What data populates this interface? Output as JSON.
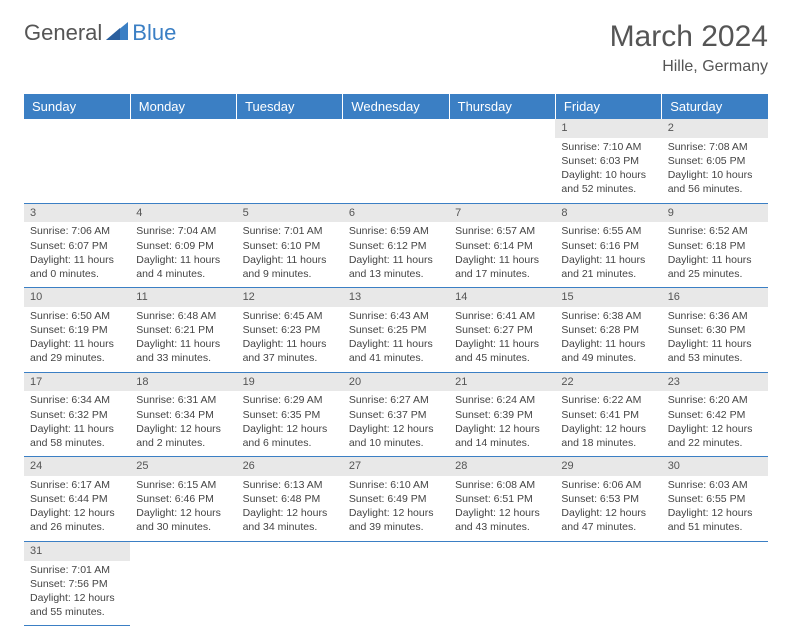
{
  "logo": {
    "part1": "General",
    "part2": "Blue"
  },
  "title": "March 2024",
  "location": "Hille, Germany",
  "colors": {
    "header_bg": "#3b7fc4",
    "header_text": "#ffffff",
    "daynum_bg": "#e8e8e8",
    "border": "#3b7fc4",
    "text": "#444444",
    "page_bg": "#ffffff"
  },
  "weekdays": [
    "Sunday",
    "Monday",
    "Tuesday",
    "Wednesday",
    "Thursday",
    "Friday",
    "Saturday"
  ],
  "weeks": [
    [
      null,
      null,
      null,
      null,
      null,
      {
        "n": "1",
        "sr": "Sunrise: 7:10 AM",
        "ss": "Sunset: 6:03 PM",
        "dl1": "Daylight: 10 hours",
        "dl2": "and 52 minutes."
      },
      {
        "n": "2",
        "sr": "Sunrise: 7:08 AM",
        "ss": "Sunset: 6:05 PM",
        "dl1": "Daylight: 10 hours",
        "dl2": "and 56 minutes."
      }
    ],
    [
      {
        "n": "3",
        "sr": "Sunrise: 7:06 AM",
        "ss": "Sunset: 6:07 PM",
        "dl1": "Daylight: 11 hours",
        "dl2": "and 0 minutes."
      },
      {
        "n": "4",
        "sr": "Sunrise: 7:04 AM",
        "ss": "Sunset: 6:09 PM",
        "dl1": "Daylight: 11 hours",
        "dl2": "and 4 minutes."
      },
      {
        "n": "5",
        "sr": "Sunrise: 7:01 AM",
        "ss": "Sunset: 6:10 PM",
        "dl1": "Daylight: 11 hours",
        "dl2": "and 9 minutes."
      },
      {
        "n": "6",
        "sr": "Sunrise: 6:59 AM",
        "ss": "Sunset: 6:12 PM",
        "dl1": "Daylight: 11 hours",
        "dl2": "and 13 minutes."
      },
      {
        "n": "7",
        "sr": "Sunrise: 6:57 AM",
        "ss": "Sunset: 6:14 PM",
        "dl1": "Daylight: 11 hours",
        "dl2": "and 17 minutes."
      },
      {
        "n": "8",
        "sr": "Sunrise: 6:55 AM",
        "ss": "Sunset: 6:16 PM",
        "dl1": "Daylight: 11 hours",
        "dl2": "and 21 minutes."
      },
      {
        "n": "9",
        "sr": "Sunrise: 6:52 AM",
        "ss": "Sunset: 6:18 PM",
        "dl1": "Daylight: 11 hours",
        "dl2": "and 25 minutes."
      }
    ],
    [
      {
        "n": "10",
        "sr": "Sunrise: 6:50 AM",
        "ss": "Sunset: 6:19 PM",
        "dl1": "Daylight: 11 hours",
        "dl2": "and 29 minutes."
      },
      {
        "n": "11",
        "sr": "Sunrise: 6:48 AM",
        "ss": "Sunset: 6:21 PM",
        "dl1": "Daylight: 11 hours",
        "dl2": "and 33 minutes."
      },
      {
        "n": "12",
        "sr": "Sunrise: 6:45 AM",
        "ss": "Sunset: 6:23 PM",
        "dl1": "Daylight: 11 hours",
        "dl2": "and 37 minutes."
      },
      {
        "n": "13",
        "sr": "Sunrise: 6:43 AM",
        "ss": "Sunset: 6:25 PM",
        "dl1": "Daylight: 11 hours",
        "dl2": "and 41 minutes."
      },
      {
        "n": "14",
        "sr": "Sunrise: 6:41 AM",
        "ss": "Sunset: 6:27 PM",
        "dl1": "Daylight: 11 hours",
        "dl2": "and 45 minutes."
      },
      {
        "n": "15",
        "sr": "Sunrise: 6:38 AM",
        "ss": "Sunset: 6:28 PM",
        "dl1": "Daylight: 11 hours",
        "dl2": "and 49 minutes."
      },
      {
        "n": "16",
        "sr": "Sunrise: 6:36 AM",
        "ss": "Sunset: 6:30 PM",
        "dl1": "Daylight: 11 hours",
        "dl2": "and 53 minutes."
      }
    ],
    [
      {
        "n": "17",
        "sr": "Sunrise: 6:34 AM",
        "ss": "Sunset: 6:32 PM",
        "dl1": "Daylight: 11 hours",
        "dl2": "and 58 minutes."
      },
      {
        "n": "18",
        "sr": "Sunrise: 6:31 AM",
        "ss": "Sunset: 6:34 PM",
        "dl1": "Daylight: 12 hours",
        "dl2": "and 2 minutes."
      },
      {
        "n": "19",
        "sr": "Sunrise: 6:29 AM",
        "ss": "Sunset: 6:35 PM",
        "dl1": "Daylight: 12 hours",
        "dl2": "and 6 minutes."
      },
      {
        "n": "20",
        "sr": "Sunrise: 6:27 AM",
        "ss": "Sunset: 6:37 PM",
        "dl1": "Daylight: 12 hours",
        "dl2": "and 10 minutes."
      },
      {
        "n": "21",
        "sr": "Sunrise: 6:24 AM",
        "ss": "Sunset: 6:39 PM",
        "dl1": "Daylight: 12 hours",
        "dl2": "and 14 minutes."
      },
      {
        "n": "22",
        "sr": "Sunrise: 6:22 AM",
        "ss": "Sunset: 6:41 PM",
        "dl1": "Daylight: 12 hours",
        "dl2": "and 18 minutes."
      },
      {
        "n": "23",
        "sr": "Sunrise: 6:20 AM",
        "ss": "Sunset: 6:42 PM",
        "dl1": "Daylight: 12 hours",
        "dl2": "and 22 minutes."
      }
    ],
    [
      {
        "n": "24",
        "sr": "Sunrise: 6:17 AM",
        "ss": "Sunset: 6:44 PM",
        "dl1": "Daylight: 12 hours",
        "dl2": "and 26 minutes."
      },
      {
        "n": "25",
        "sr": "Sunrise: 6:15 AM",
        "ss": "Sunset: 6:46 PM",
        "dl1": "Daylight: 12 hours",
        "dl2": "and 30 minutes."
      },
      {
        "n": "26",
        "sr": "Sunrise: 6:13 AM",
        "ss": "Sunset: 6:48 PM",
        "dl1": "Daylight: 12 hours",
        "dl2": "and 34 minutes."
      },
      {
        "n": "27",
        "sr": "Sunrise: 6:10 AM",
        "ss": "Sunset: 6:49 PM",
        "dl1": "Daylight: 12 hours",
        "dl2": "and 39 minutes."
      },
      {
        "n": "28",
        "sr": "Sunrise: 6:08 AM",
        "ss": "Sunset: 6:51 PM",
        "dl1": "Daylight: 12 hours",
        "dl2": "and 43 minutes."
      },
      {
        "n": "29",
        "sr": "Sunrise: 6:06 AM",
        "ss": "Sunset: 6:53 PM",
        "dl1": "Daylight: 12 hours",
        "dl2": "and 47 minutes."
      },
      {
        "n": "30",
        "sr": "Sunrise: 6:03 AM",
        "ss": "Sunset: 6:55 PM",
        "dl1": "Daylight: 12 hours",
        "dl2": "and 51 minutes."
      }
    ],
    [
      {
        "n": "31",
        "sr": "Sunrise: 7:01 AM",
        "ss": "Sunset: 7:56 PM",
        "dl1": "Daylight: 12 hours",
        "dl2": "and 55 minutes."
      },
      null,
      null,
      null,
      null,
      null,
      null
    ]
  ]
}
